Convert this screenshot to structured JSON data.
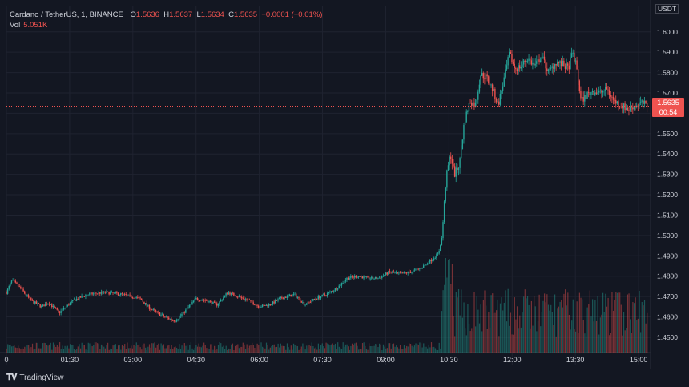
{
  "header": {
    "symbol": "Cardano / TetherUS, 1, BINANCE",
    "o_label": "O",
    "o_value": "1.5636",
    "h_label": "H",
    "h_value": "1.5637",
    "l_label": "L",
    "l_value": "1.5634",
    "c_label": "C",
    "c_value": "1.5635",
    "change": "−0.0001 (−0.01%)",
    "vol_label": "Vol",
    "vol_value": "5.051K"
  },
  "price_axis": {
    "unit": "USDT",
    "current_price": "1.5635",
    "countdown": "00:54"
  },
  "brand": {
    "name": "TradingView"
  },
  "colors": {
    "up": "#26a69a",
    "down": "#ef5350",
    "background": "#131722",
    "grid": "#1f2330"
  },
  "chart_data": {
    "type": "candlestick",
    "xlabel": "",
    "ylabel": "",
    "ylim": [
      1.4425,
      1.6125
    ],
    "y_ticks": [
      1.45,
      1.46,
      1.47,
      1.48,
      1.49,
      1.5,
      1.51,
      1.52,
      1.53,
      1.54,
      1.55,
      1.56,
      1.57,
      1.58,
      1.59,
      1.6
    ],
    "y_tick_labels": [
      "1.4500",
      "1.4600",
      "1.4700",
      "1.4800",
      "1.4900",
      "1.5000",
      "1.5100",
      "1.5200",
      "1.5300",
      "1.5400",
      "1.5500",
      "1.5600",
      "1.5700",
      "1.5800",
      "1.5900",
      "1.6000"
    ],
    "x_ticks": [
      "0",
      "01:30",
      "03:00",
      "04:30",
      "06:00",
      "07:30",
      "09:00",
      "10:30",
      "12:00",
      "13:30",
      "15:00"
    ],
    "x_tick_minutes": [
      0,
      90,
      180,
      270,
      360,
      450,
      540,
      630,
      720,
      810,
      900
    ],
    "x_range_minutes": [
      0,
      917
    ],
    "price_anchors": [
      [
        0,
        1.472
      ],
      [
        8,
        1.478
      ],
      [
        20,
        1.474
      ],
      [
        35,
        1.468
      ],
      [
        50,
        1.465
      ],
      [
        60,
        1.467
      ],
      [
        75,
        1.462
      ],
      [
        95,
        1.468
      ],
      [
        115,
        1.471
      ],
      [
        140,
        1.472
      ],
      [
        165,
        1.471
      ],
      [
        190,
        1.469
      ],
      [
        205,
        1.464
      ],
      [
        225,
        1.46
      ],
      [
        240,
        1.458
      ],
      [
        255,
        1.463
      ],
      [
        270,
        1.469
      ],
      [
        285,
        1.468
      ],
      [
        300,
        1.466
      ],
      [
        315,
        1.472
      ],
      [
        330,
        1.47
      ],
      [
        345,
        1.468
      ],
      [
        360,
        1.465
      ],
      [
        375,
        1.466
      ],
      [
        390,
        1.469
      ],
      [
        410,
        1.471
      ],
      [
        425,
        1.466
      ],
      [
        440,
        1.469
      ],
      [
        455,
        1.471
      ],
      [
        470,
        1.474
      ],
      [
        485,
        1.479
      ],
      [
        500,
        1.48
      ],
      [
        515,
        1.479
      ],
      [
        530,
        1.479
      ],
      [
        545,
        1.482
      ],
      [
        560,
        1.481
      ],
      [
        575,
        1.482
      ],
      [
        590,
        1.484
      ],
      [
        605,
        1.488
      ],
      [
        615,
        1.491
      ],
      [
        620,
        1.499
      ],
      [
        626,
        1.528
      ],
      [
        632,
        1.54
      ],
      [
        638,
        1.53
      ],
      [
        645,
        1.535
      ],
      [
        652,
        1.556
      ],
      [
        660,
        1.566
      ],
      [
        668,
        1.564
      ],
      [
        675,
        1.579
      ],
      [
        683,
        1.578
      ],
      [
        692,
        1.572
      ],
      [
        700,
        1.564
      ],
      [
        708,
        1.576
      ],
      [
        716,
        1.589
      ],
      [
        724,
        1.582
      ],
      [
        732,
        1.583
      ],
      [
        742,
        1.587
      ],
      [
        752,
        1.583
      ],
      [
        762,
        1.588
      ],
      [
        772,
        1.58
      ],
      [
        782,
        1.585
      ],
      [
        792,
        1.584
      ],
      [
        800,
        1.582
      ],
      [
        806,
        1.59
      ],
      [
        812,
        1.582
      ],
      [
        818,
        1.566
      ],
      [
        826,
        1.569
      ],
      [
        835,
        1.571
      ],
      [
        845,
        1.57
      ],
      [
        855,
        1.572
      ],
      [
        865,
        1.566
      ],
      [
        875,
        1.564
      ],
      [
        885,
        1.562
      ],
      [
        895,
        1.564
      ],
      [
        905,
        1.565
      ],
      [
        913,
        1.5635
      ]
    ],
    "current_price": 1.5635
  }
}
